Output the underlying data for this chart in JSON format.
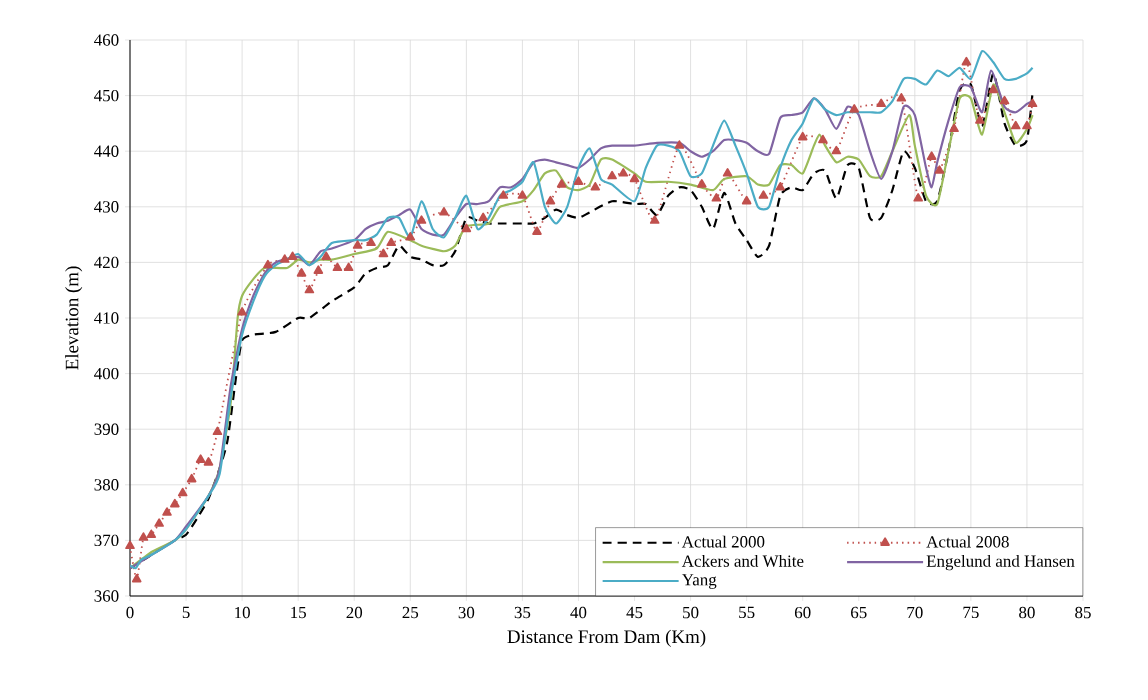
{
  "chart_data": {
    "type": "line",
    "xlabel": "Distance From Dam (Km)",
    "ylabel": "Elevation (m)",
    "xlim": [
      0,
      85
    ],
    "xticks": [
      0,
      5,
      10,
      15,
      20,
      25,
      30,
      35,
      40,
      45,
      50,
      55,
      60,
      65,
      70,
      75,
      80,
      85
    ],
    "ylim": [
      360,
      460
    ],
    "yticks": [
      360,
      370,
      380,
      390,
      400,
      410,
      420,
      430,
      440,
      450,
      460
    ],
    "grid": true,
    "legend": "bottom right",
    "series": [
      {
        "name": "Actual 2000",
        "color": "#000000",
        "line_style": "dashed",
        "marker": "none",
        "x": [
          0,
          2,
          4,
          5,
          6,
          7,
          8,
          8.7,
          9.5,
          10,
          11,
          13,
          15,
          16,
          18,
          20,
          21,
          22,
          23,
          24,
          25,
          26,
          27,
          28,
          29,
          30,
          31,
          32,
          33,
          35,
          36,
          37,
          38,
          39,
          40,
          41,
          43,
          45,
          46,
          47,
          48,
          49,
          50,
          51,
          52,
          53,
          54,
          55,
          56,
          57,
          58,
          59,
          60,
          61,
          62,
          63,
          64,
          65,
          66,
          67,
          68,
          69,
          70,
          71,
          72,
          73,
          74,
          75,
          76,
          77,
          78,
          79,
          80,
          80.5
        ],
        "values": [
          365,
          367.5,
          370,
          371,
          374,
          377.5,
          383,
          388,
          400,
          406,
          407,
          407.5,
          410,
          410,
          413,
          415.5,
          418,
          419,
          419.5,
          423,
          421,
          420.5,
          419.5,
          419.5,
          422,
          428,
          427.5,
          427,
          427,
          427,
          427,
          428,
          429.5,
          428.5,
          428,
          429,
          431,
          430.5,
          430.5,
          428.5,
          432,
          433.5,
          433,
          430,
          426,
          432.5,
          427,
          424,
          421,
          423,
          432,
          433.5,
          433,
          436,
          436.5,
          431.5,
          437.5,
          437,
          428,
          428,
          433,
          440,
          437,
          431,
          431,
          440,
          451,
          452,
          444.5,
          454,
          445,
          441,
          442,
          450.5
        ]
      },
      {
        "name": "Actual 2008",
        "color": "#c0504d",
        "line_style": "dotted",
        "marker": "triangle",
        "x": [
          0,
          0.6,
          1.2,
          1.9,
          2.6,
          3.3,
          4.0,
          4.7,
          5.5,
          6.3,
          7.0,
          7.8,
          10,
          12.3,
          13.8,
          14.5,
          15.3,
          16.0,
          16.8,
          17.5,
          18.5,
          19.5,
          20.3,
          21.5,
          22.6,
          23.3,
          25,
          26,
          28,
          30,
          31.5,
          33.3,
          35,
          36.3,
          37.5,
          38.5,
          40,
          41.5,
          43,
          44,
          45,
          46.8,
          49,
          51,
          52.3,
          53.3,
          55,
          56.5,
          58,
          60,
          61.8,
          63,
          64.6,
          67,
          68.8,
          70.3,
          71.5,
          72.2,
          73.5,
          74.6,
          75.8,
          77,
          78,
          79,
          80,
          80.5
        ],
        "values": [
          369,
          363,
          370.5,
          371,
          373,
          375,
          376.5,
          378.5,
          381,
          384.5,
          384,
          389.5,
          411,
          419.5,
          420.5,
          421,
          418,
          415,
          418.5,
          421,
          419,
          419,
          423,
          423.5,
          421.5,
          423.5,
          424.5,
          427.5,
          429,
          426,
          428,
          432,
          432,
          425.5,
          431,
          434,
          434.5,
          433.5,
          435.5,
          436,
          435,
          427.5,
          441,
          434,
          431.5,
          436,
          431,
          432,
          433.5,
          442.5,
          442,
          440,
          447.5,
          448.5,
          449.5,
          431.5,
          439,
          436.5,
          444,
          456,
          445.5,
          451,
          449,
          444.5,
          444.5,
          448.5
        ]
      },
      {
        "name": "Ackers and White",
        "color": "#9bbb59",
        "line_style": "solid",
        "marker": "none",
        "x": [
          0,
          2,
          4,
          5,
          7,
          8,
          9,
          9.6,
          10,
          11,
          12,
          14,
          15,
          16,
          17,
          18,
          20,
          22,
          23,
          25,
          26,
          28,
          29,
          30,
          32,
          33,
          35,
          36,
          37,
          38,
          39,
          40,
          41,
          42,
          43,
          45,
          46,
          48,
          50,
          52,
          53,
          55,
          56,
          57,
          58,
          59,
          60,
          61,
          61.5,
          62,
          63,
          64,
          65,
          66,
          67,
          68,
          69.5,
          70,
          71,
          72,
          73,
          74,
          75,
          76,
          77,
          78,
          79,
          80,
          80.5
        ],
        "values": [
          365,
          368,
          370,
          372,
          378,
          383,
          395,
          410,
          414,
          417,
          419,
          419,
          420.5,
          420,
          420.5,
          420.5,
          421.5,
          422.5,
          425.5,
          424,
          423,
          422,
          423,
          426.5,
          427,
          430,
          431,
          433,
          436,
          436.5,
          433.5,
          433,
          434,
          438.5,
          438.5,
          436,
          434.5,
          434.5,
          434,
          433,
          435,
          435.5,
          434,
          434,
          437.5,
          437.5,
          436,
          441,
          443,
          441,
          438,
          439,
          438.5,
          435.5,
          435.5,
          440,
          446.5,
          441,
          432,
          430.5,
          440,
          449.5,
          449.5,
          443,
          452,
          447,
          441.5,
          444,
          446.5
        ]
      },
      {
        "name": "Engelund and Hansen",
        "color": "#8064a2",
        "line_style": "solid",
        "marker": "none",
        "x": [
          0,
          2,
          4,
          5,
          7,
          8,
          9,
          10,
          11,
          12,
          13,
          15,
          16,
          17,
          18,
          20,
          21,
          22,
          23,
          24,
          25,
          26,
          27,
          28,
          29,
          30,
          31,
          32,
          33,
          34,
          35,
          36,
          37,
          38,
          39,
          40,
          41,
          42,
          43,
          45,
          47,
          49,
          50,
          51,
          52,
          53,
          54,
          55,
          56,
          57,
          58,
          59,
          60,
          61,
          62,
          63,
          64,
          65,
          66,
          67,
          68,
          69,
          70,
          71,
          71.5,
          72,
          73,
          74,
          75,
          76,
          76.8,
          78,
          79,
          80,
          80.5
        ],
        "values": [
          365,
          367.5,
          370,
          372.5,
          378,
          383,
          398,
          408,
          414,
          418,
          420,
          421,
          419.5,
          422,
          422.5,
          424,
          426,
          427,
          427.5,
          428.5,
          429.5,
          426,
          425,
          425,
          428,
          430.5,
          430.5,
          431,
          433.5,
          433.5,
          435,
          438,
          438.5,
          438,
          437.5,
          437,
          438.5,
          440.5,
          441,
          441,
          441.5,
          441.5,
          440,
          439,
          440,
          442,
          442,
          441.5,
          440,
          439.5,
          446,
          446.5,
          447,
          449.5,
          447.5,
          444,
          448,
          446.5,
          440,
          435,
          440,
          448,
          446.5,
          437,
          433.5,
          438,
          445.5,
          451.5,
          451.5,
          447,
          454.5,
          448,
          447,
          448.5,
          449
        ]
      },
      {
        "name": "Yang",
        "color": "#4bacc6",
        "line_style": "solid",
        "marker": "none",
        "x": [
          0,
          0.5,
          1,
          2,
          4,
          5,
          7,
          8,
          9,
          10,
          11,
          12,
          13,
          14,
          15,
          16,
          17,
          18,
          20,
          21,
          22,
          23,
          24,
          25,
          26,
          27,
          28,
          29,
          30,
          31,
          32,
          33,
          34,
          35,
          36,
          37,
          38,
          39,
          40,
          41,
          42,
          43,
          45,
          46,
          47,
          48,
          49,
          50,
          51,
          52,
          53,
          54,
          55,
          56,
          57,
          58,
          59,
          60,
          61,
          62,
          63,
          64,
          65,
          66,
          67,
          68,
          69,
          70,
          71,
          72,
          73,
          74,
          75,
          76,
          77,
          78,
          79,
          80,
          80.5
        ],
        "values": [
          365.5,
          365,
          366.5,
          367.5,
          370,
          372,
          378,
          382,
          396,
          407,
          413,
          417.5,
          419.5,
          420.5,
          421.5,
          419.5,
          421,
          423.5,
          424,
          424,
          425,
          428,
          428,
          424.5,
          431,
          426,
          424.5,
          428,
          432,
          426,
          428,
          432,
          433,
          434.5,
          438,
          430,
          427,
          430,
          437,
          440.5,
          435,
          434,
          431,
          437,
          441,
          441,
          440,
          435.5,
          436,
          441,
          445.5,
          441,
          436,
          430,
          430,
          437,
          442,
          445,
          449.5,
          447.5,
          446.5,
          447,
          447,
          447,
          447,
          449,
          453,
          453,
          452,
          454.5,
          453.5,
          455,
          453,
          458,
          456,
          453,
          453,
          454,
          455
        ]
      }
    ]
  }
}
